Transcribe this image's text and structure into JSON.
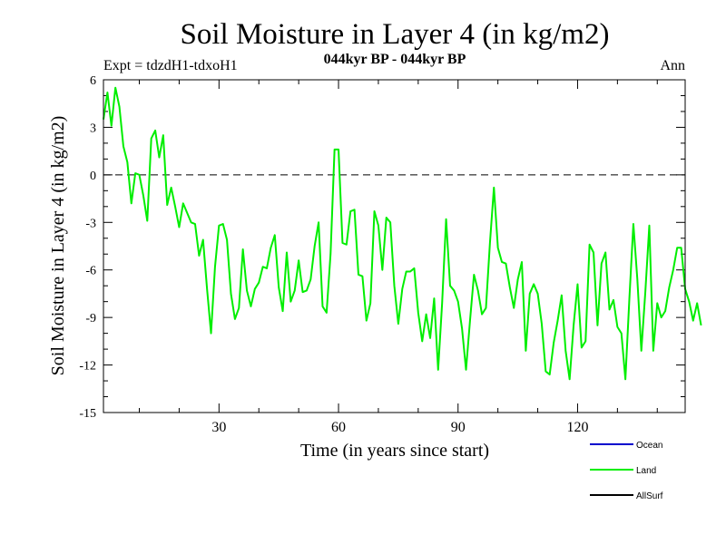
{
  "chart_data": {
    "type": "line",
    "title": "Soil Moisture in Layer 4 (in kg/m2)",
    "subtitle": "044kyr BP - 044kyr BP",
    "experiment_label": "Expt = tdzdH1-tdxoH1",
    "season_label": "Ann",
    "xlabel": "Time (in years since start)",
    "ylabel": "Soil Moisture in Layer 4 (in kg/m2)",
    "xlim": [
      1,
      147
    ],
    "ylim": [
      -15,
      6
    ],
    "x_ticks": [
      30,
      60,
      90,
      120
    ],
    "y_ticks": [
      6,
      3,
      0,
      -3,
      -6,
      -9,
      -12,
      -15
    ],
    "zero_line": 0,
    "legend_position": "bottom-right",
    "series": [
      {
        "name": "Ocean",
        "color": "#0000cc",
        "values": []
      },
      {
        "name": "Land",
        "color": "#00ee00",
        "values": [
          3.5,
          5.2,
          3.1,
          5.5,
          4.3,
          1.8,
          0.8,
          -1.8,
          0.1,
          0.0,
          -1.3,
          -2.9,
          2.3,
          2.8,
          1.1,
          2.5,
          -1.9,
          -0.8,
          -2.0,
          -3.3,
          -1.8,
          -2.4,
          -3.0,
          -3.1,
          -5.1,
          -4.1,
          -7.2,
          -10.0,
          -5.8,
          -3.2,
          -3.1,
          -4.1,
          -7.5,
          -9.1,
          -8.4,
          -4.7,
          -7.3,
          -8.3,
          -7.2,
          -6.8,
          -5.8,
          -5.9,
          -4.6,
          -3.8,
          -7.1,
          -8.6,
          -4.9,
          -8.0,
          -7.3,
          -5.4,
          -7.4,
          -7.3,
          -6.6,
          -4.5,
          -3.0,
          -8.3,
          -8.7,
          -5.0,
          1.6,
          1.6,
          -4.3,
          -4.4,
          -2.3,
          -2.2,
          -6.3,
          -6.4,
          -9.2,
          -8.1,
          -2.3,
          -3.2,
          -6.0,
          -2.7,
          -3.0,
          -7.0,
          -9.4,
          -7.2,
          -6.1,
          -6.1,
          -5.9,
          -8.7,
          -10.5,
          -8.8,
          -10.3,
          -7.8,
          -12.3,
          -8.1,
          -2.8,
          -7.0,
          -7.3,
          -8.0,
          -9.7,
          -12.3,
          -9.2,
          -6.3,
          -7.3,
          -8.8,
          -8.4,
          -4.3,
          -0.8,
          -4.6,
          -5.5,
          -5.6,
          -7.1,
          -8.4,
          -6.6,
          -5.5,
          -11.1,
          -7.5,
          -6.9,
          -7.5,
          -9.4,
          -12.4,
          -12.6,
          -10.6,
          -9.2,
          -7.6,
          -11.1,
          -12.9,
          -9.5,
          -6.9,
          -10.9,
          -10.5,
          -4.4,
          -4.9,
          -9.5,
          -5.6,
          -4.9,
          -8.5,
          -7.9,
          -9.6,
          -10.0,
          -12.9,
          -7.8,
          -3.1,
          -6.6,
          -11.1,
          -7.4,
          -3.2,
          -11.1,
          -8.1,
          -9.0,
          -8.6,
          -7.1,
          -6.0,
          -4.6,
          -4.6,
          -7.2,
          -8.0,
          -9.2,
          -8.1,
          -9.5
        ]
      },
      {
        "name": "AllSurf",
        "color": "#000000",
        "values": []
      }
    ]
  }
}
